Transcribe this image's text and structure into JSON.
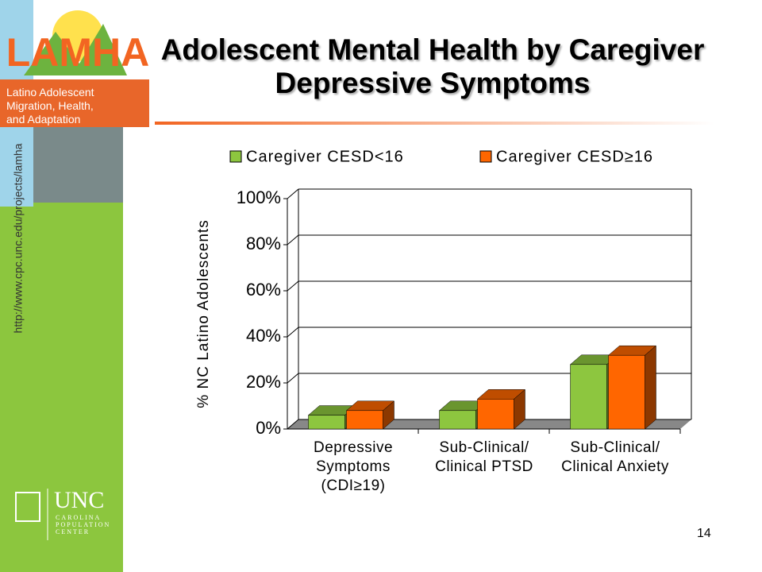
{
  "slide": {
    "logo_title": "LAMHA",
    "logo_lines": [
      "Latino Adolescent",
      "Migration, Health,",
      "and Adaptation"
    ],
    "url": "http://www.cpc.unc.edu/projects/lamha",
    "unc": "UNC",
    "unc_lines": [
      "CAROLINA",
      "POPULATION",
      "CENTER"
    ],
    "page_number": "14"
  },
  "chart_data": {
    "type": "bar3d",
    "title": "Adolescent Mental Health by Caregiver Depressive Symptoms",
    "y_label": "% NC Latino Adolescents",
    "categories": [
      "Depressive\nSymptoms\n(CDI≥19)",
      "Sub-Clinical/\nClinical PTSD",
      "Sub-Clinical/\nClinical Anxiety"
    ],
    "series": [
      {
        "name": "Caregiver CESD<16",
        "color": "#8dc63f",
        "values": [
          6,
          8,
          28
        ]
      },
      {
        "name": "Caregiver CESD≥16",
        "color": "#ff6600",
        "values": [
          8,
          13,
          32
        ]
      }
    ],
    "ylim": [
      0,
      100
    ],
    "yticks": [
      {
        "value": 0,
        "label": "0%"
      },
      {
        "value": 20,
        "label": "20%"
      },
      {
        "value": 40,
        "label": "40%"
      },
      {
        "value": 60,
        "label": "60%"
      },
      {
        "value": 80,
        "label": "80%"
      },
      {
        "value": 100,
        "label": "100%"
      }
    ],
    "grid": true,
    "legend": "top"
  }
}
